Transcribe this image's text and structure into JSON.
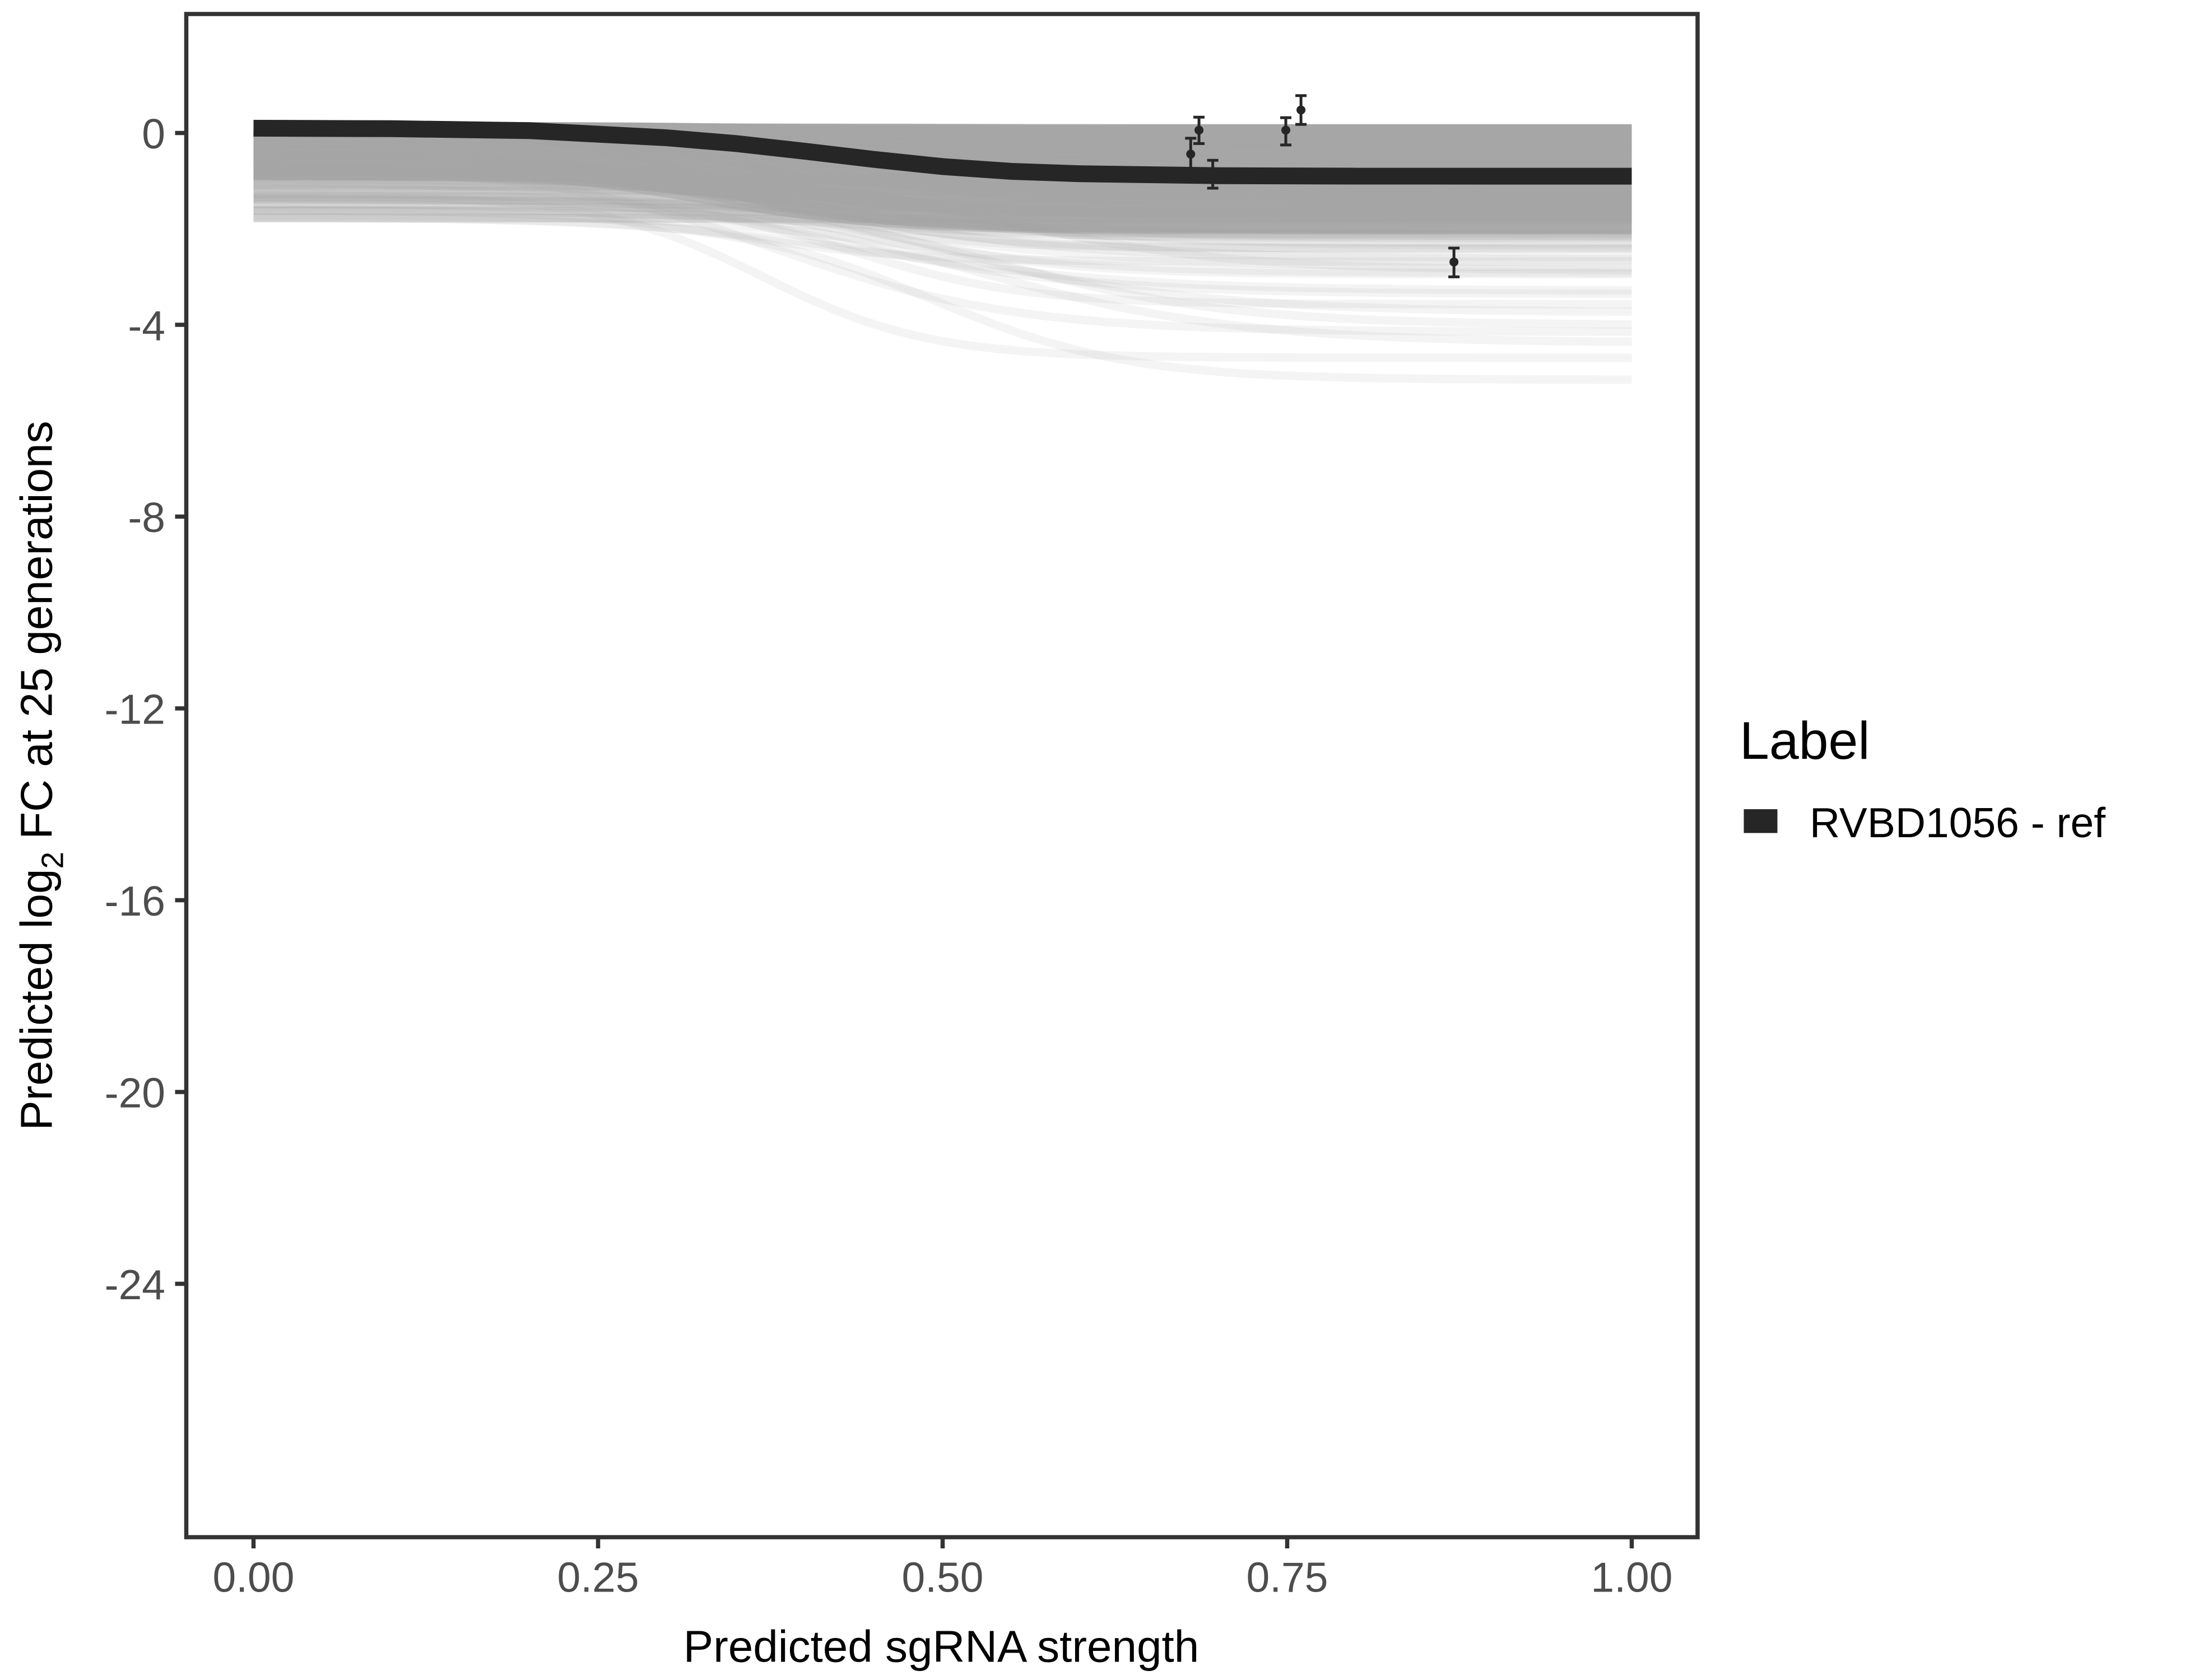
{
  "chart_data": {
    "type": "line",
    "title": "",
    "xlabel": "Predicted sgRNA strength",
    "ylabel": {
      "prefix": "Predicted  log",
      "sub": "2",
      "suffix": " FC at 25 generations"
    },
    "xlim": [
      -0.05,
      1.05
    ],
    "ylim": [
      -29.3,
      2.5
    ],
    "x_ticks": [
      "0.00",
      "0.25",
      "0.50",
      "0.75",
      "1.00"
    ],
    "x_tick_values": [
      0,
      0.25,
      0.5,
      0.75,
      1.0
    ],
    "y_ticks": [
      "0",
      "-4",
      "-8",
      "-12",
      "-16",
      "-20",
      "-24"
    ],
    "y_tick_values": [
      0,
      -4,
      -8,
      -12,
      -16,
      -20,
      -24
    ],
    "grid": false,
    "legend": {
      "title": "Label",
      "position": "right",
      "entries": [
        {
          "label": "RVBD1056 - ref",
          "color": "#262626"
        }
      ]
    },
    "series": [
      {
        "name": "RVBD1056 - ref",
        "color": "#262626",
        "x": [
          0,
          0.1,
          0.2,
          0.3,
          0.35,
          0.4,
          0.45,
          0.5,
          0.55,
          0.6,
          0.7,
          0.8,
          0.9,
          1.0
        ],
        "y": [
          0.1,
          0.09,
          0.05,
          -0.1,
          -0.22,
          -0.38,
          -0.55,
          -0.7,
          -0.8,
          -0.85,
          -0.89,
          -0.9,
          -0.9,
          -0.9
        ]
      }
    ],
    "points": [
      {
        "x": 0.68,
        "y": -0.44,
        "ymin": -0.75,
        "ymax": -0.11
      },
      {
        "x": 0.686,
        "y": 0.06,
        "ymin": -0.22,
        "ymax": 0.33
      },
      {
        "x": 0.696,
        "y": -0.85,
        "ymin": -1.15,
        "ymax": -0.57
      },
      {
        "x": 0.749,
        "y": 0.06,
        "ymin": -0.25,
        "ymax": 0.32
      },
      {
        "x": 0.76,
        "y": 0.48,
        "ymin": 0.18,
        "ymax": 0.78
      },
      {
        "x": 0.871,
        "y": -2.69,
        "ymin": -3.0,
        "ymax": -2.4
      }
    ],
    "colors": {
      "reference": "#262626",
      "samples": "#a6a6a6",
      "axis": "#333333"
    }
  }
}
